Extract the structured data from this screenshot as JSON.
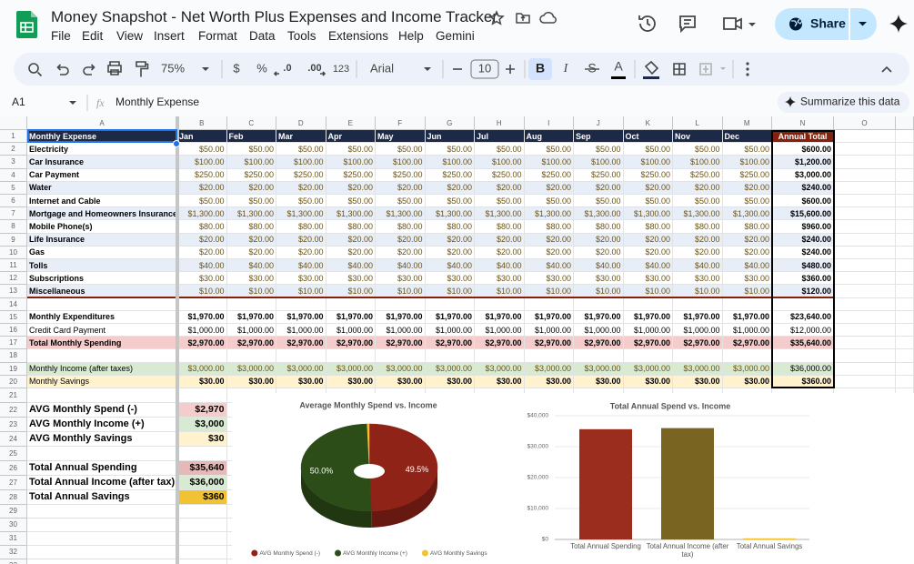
{
  "app": {
    "doc_title": "Money Snapshot - Net Worth Plus Expenses and Income Tracker",
    "menu": [
      "File",
      "Edit",
      "View",
      "Insert",
      "Format",
      "Data",
      "Tools",
      "Extensions",
      "Help",
      "Gemini"
    ],
    "share": "Share",
    "toolbar": {
      "zoom": "75%",
      "currency": "$",
      "percent": "%",
      "decrease_decimal": ".0",
      "increase_decimal": ".00",
      "number_format": "123",
      "font": "Arial",
      "font_size": "10",
      "bold": "B",
      "italic": "I",
      "strike": "S",
      "text_color": "A"
    },
    "name_box": "A1",
    "fx": "fx",
    "formula": "Monthly Expense",
    "summarize": "Summarize this data"
  },
  "sheet": {
    "columns": [
      "A",
      "B",
      "C",
      "D",
      "E",
      "F",
      "G",
      "H",
      "I",
      "J",
      "K",
      "L",
      "M",
      "N",
      "O"
    ],
    "row_numbers": [
      1,
      2,
      3,
      4,
      5,
      6,
      7,
      8,
      9,
      10,
      11,
      12,
      13,
      14,
      15,
      16,
      17,
      18,
      19,
      20,
      21,
      22,
      23,
      24,
      25,
      26,
      27,
      28,
      29,
      30,
      31,
      32,
      33
    ],
    "header": {
      "label": "Monthly Expense",
      "months": [
        "Jan",
        "Feb",
        "Mar",
        "Apr",
        "May",
        "Jun",
        "Jul",
        "Aug",
        "Sep",
        "Oct",
        "Nov",
        "Dec"
      ],
      "total": "Annual Total"
    },
    "rows": [
      {
        "label": "Electricity",
        "months": [
          "$50.00",
          "$50.00",
          "$50.00",
          "$50.00",
          "$50.00",
          "$50.00",
          "$50.00",
          "$50.00",
          "$50.00",
          "$50.00",
          "$50.00",
          "$50.00"
        ],
        "total": "$600.00"
      },
      {
        "label": "Car Insurance",
        "months": [
          "$100.00",
          "$100.00",
          "$100.00",
          "$100.00",
          "$100.00",
          "$100.00",
          "$100.00",
          "$100.00",
          "$100.00",
          "$100.00",
          "$100.00",
          "$100.00"
        ],
        "total": "$1,200.00"
      },
      {
        "label": "Car Payment",
        "months": [
          "$250.00",
          "$250.00",
          "$250.00",
          "$250.00",
          "$250.00",
          "$250.00",
          "$250.00",
          "$250.00",
          "$250.00",
          "$250.00",
          "$250.00",
          "$250.00"
        ],
        "total": "$3,000.00"
      },
      {
        "label": "Water",
        "months": [
          "$20.00",
          "$20.00",
          "$20.00",
          "$20.00",
          "$20.00",
          "$20.00",
          "$20.00",
          "$20.00",
          "$20.00",
          "$20.00",
          "$20.00",
          "$20.00"
        ],
        "total": "$240.00"
      },
      {
        "label": "Internet and Cable",
        "months": [
          "$50.00",
          "$50.00",
          "$50.00",
          "$50.00",
          "$50.00",
          "$50.00",
          "$50.00",
          "$50.00",
          "$50.00",
          "$50.00",
          "$50.00",
          "$50.00"
        ],
        "total": "$600.00"
      },
      {
        "label": "Mortgage and Homeowners Insurance",
        "months": [
          "$1,300.00",
          "$1,300.00",
          "$1,300.00",
          "$1,300.00",
          "$1,300.00",
          "$1,300.00",
          "$1,300.00",
          "$1,300.00",
          "$1,300.00",
          "$1,300.00",
          "$1,300.00",
          "$1,300.00"
        ],
        "total": "$15,600.00"
      },
      {
        "label": "Mobile Phone(s)",
        "months": [
          "$80.00",
          "$80.00",
          "$80.00",
          "$80.00",
          "$80.00",
          "$80.00",
          "$80.00",
          "$80.00",
          "$80.00",
          "$80.00",
          "$80.00",
          "$80.00"
        ],
        "total": "$960.00"
      },
      {
        "label": "Life Insurance",
        "months": [
          "$20.00",
          "$20.00",
          "$20.00",
          "$20.00",
          "$20.00",
          "$20.00",
          "$20.00",
          "$20.00",
          "$20.00",
          "$20.00",
          "$20.00",
          "$20.00"
        ],
        "total": "$240.00"
      },
      {
        "label": "Gas",
        "months": [
          "$20.00",
          "$20.00",
          "$20.00",
          "$20.00",
          "$20.00",
          "$20.00",
          "$20.00",
          "$20.00",
          "$20.00",
          "$20.00",
          "$20.00",
          "$20.00"
        ],
        "total": "$240.00"
      },
      {
        "label": "Tolls",
        "months": [
          "$40.00",
          "$40.00",
          "$40.00",
          "$40.00",
          "$40.00",
          "$40.00",
          "$40.00",
          "$40.00",
          "$40.00",
          "$40.00",
          "$40.00",
          "$40.00"
        ],
        "total": "$480.00"
      },
      {
        "label": "Subscriptions",
        "months": [
          "$30.00",
          "$30.00",
          "$30.00",
          "$30.00",
          "$30.00",
          "$30.00",
          "$30.00",
          "$30.00",
          "$30.00",
          "$30.00",
          "$30.00",
          "$30.00"
        ],
        "total": "$360.00"
      },
      {
        "label": "Miscellaneous",
        "months": [
          "$10.00",
          "$10.00",
          "$10.00",
          "$10.00",
          "$10.00",
          "$10.00",
          "$10.00",
          "$10.00",
          "$10.00",
          "$10.00",
          "$10.00",
          "$10.00"
        ],
        "total": "$120.00"
      },
      null,
      {
        "label": "Monthly Expenditures",
        "months": [
          "$1,970.00",
          "$1,970.00",
          "$1,970.00",
          "$1,970.00",
          "$1,970.00",
          "$1,970.00",
          "$1,970.00",
          "$1,970.00",
          "$1,970.00",
          "$1,970.00",
          "$1,970.00",
          "$1,970.00"
        ],
        "total": "$23,640.00"
      },
      {
        "label": "Credit Card Payment",
        "months": [
          "$1,000.00",
          "$1,000.00",
          "$1,000.00",
          "$1,000.00",
          "$1,000.00",
          "$1,000.00",
          "$1,000.00",
          "$1,000.00",
          "$1,000.00",
          "$1,000.00",
          "$1,000.00",
          "$1,000.00"
        ],
        "total": "$12,000.00"
      },
      {
        "label": "Total Monthly Spending",
        "months": [
          "$2,970.00",
          "$2,970.00",
          "$2,970.00",
          "$2,970.00",
          "$2,970.00",
          "$2,970.00",
          "$2,970.00",
          "$2,970.00",
          "$2,970.00",
          "$2,970.00",
          "$2,970.00",
          "$2,970.00"
        ],
        "total": "$35,640.00"
      },
      null,
      {
        "label": "Monthly Income (after taxes)",
        "months": [
          "$3,000.00",
          "$3,000.00",
          "$3,000.00",
          "$3,000.00",
          "$3,000.00",
          "$3,000.00",
          "$3,000.00",
          "$3,000.00",
          "$3,000.00",
          "$3,000.00",
          "$3,000.00",
          "$3,000.00"
        ],
        "total": "$36,000.00"
      },
      {
        "label": "Monthly Savings",
        "months": [
          "$30.00",
          "$30.00",
          "$30.00",
          "$30.00",
          "$30.00",
          "$30.00",
          "$30.00",
          "$30.00",
          "$30.00",
          "$30.00",
          "$30.00",
          "$30.00"
        ],
        "total": "$360.00"
      }
    ],
    "summary": [
      {
        "label": "AVG Monthly Spend (-)",
        "value": "$2,970"
      },
      {
        "label": "AVG Monthly Income (+)",
        "value": "$3,000"
      },
      {
        "label": "AVG Monthly Savings",
        "value": "$30"
      },
      null,
      {
        "label": "Total Annual Spending",
        "value": "$35,640"
      },
      {
        "label": "Total Annual Income (after tax)",
        "value": "$36,000"
      },
      {
        "label": "Total Annual Savings",
        "value": "$360"
      }
    ]
  },
  "chart_data": [
    {
      "type": "pie",
      "title": "Average Monthly Spend vs. Income",
      "categories": [
        "AVG Monthly Spend (-)",
        "AVG Monthly Income (+)",
        "AVG Monthly Savings"
      ],
      "values": [
        49.5,
        50.0,
        0.5
      ],
      "value_labels": [
        "49.5%",
        "50.0%",
        null
      ],
      "colors": [
        "#8f2317",
        "#2c4c18",
        "#f1c232"
      ]
    },
    {
      "type": "bar",
      "title": "Total Annual Spend vs. Income",
      "categories": [
        "Total Annual Spending",
        "Total Annual Income (after tax)",
        "Total Annual Savings"
      ],
      "values": [
        35640,
        36000,
        360
      ],
      "colors": [
        "#9b2d1f",
        "#7a6421",
        "#f1c232"
      ],
      "ylim": [
        0,
        40000
      ],
      "yticks": [
        {
          "value": 0,
          "label": "$0"
        },
        {
          "value": 10000,
          "label": "$10,000"
        },
        {
          "value": 20000,
          "label": "$20,000"
        },
        {
          "value": 30000,
          "label": "$30,000"
        },
        {
          "value": 40000,
          "label": "$40,000"
        }
      ],
      "grid": true
    }
  ]
}
